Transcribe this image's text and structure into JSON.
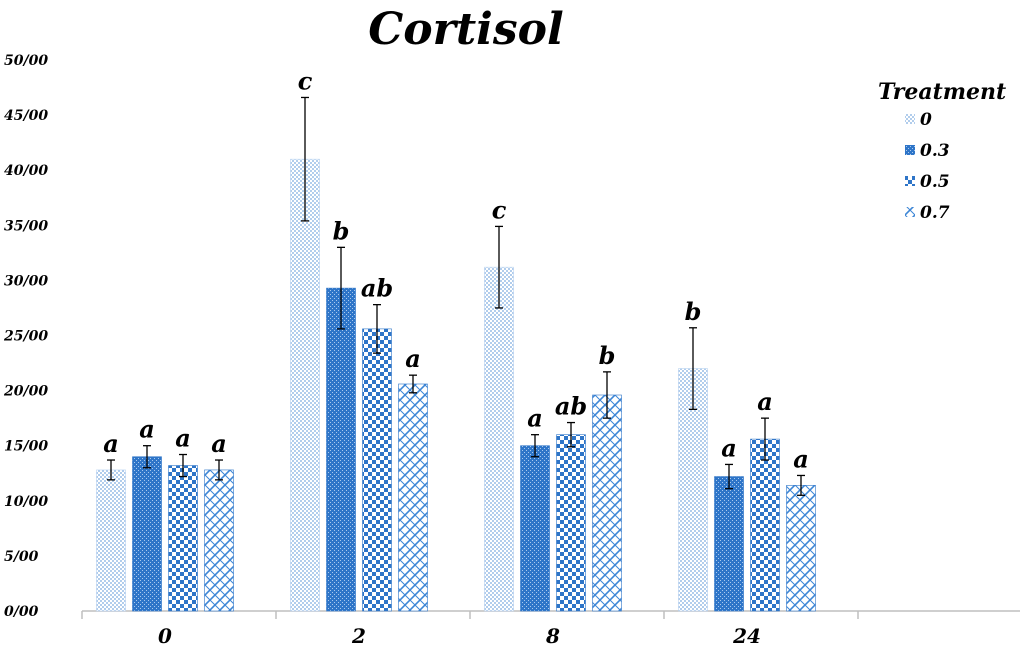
{
  "chart_data": {
    "type": "bar",
    "title": "Cortisol",
    "xlabel": "",
    "ylabel": "",
    "ylim": [
      0,
      50
    ],
    "y_ticks": [
      "0/00",
      "5/00",
      "10/00",
      "15/00",
      "20/00",
      "25/00",
      "30/00",
      "35/00",
      "40/00",
      "45/00",
      "50/00"
    ],
    "categories": [
      "0",
      "2",
      "8",
      "24"
    ],
    "legend_title": "Treatment",
    "legend_position": "top-right",
    "grid": false,
    "series": [
      {
        "name": "0",
        "pattern": "dots",
        "color": "#8fb8e6",
        "values": [
          12.8,
          41.0,
          31.2,
          22.0
        ],
        "errors": [
          0.9,
          5.6,
          3.7,
          3.7
        ],
        "letters": [
          "a",
          "c",
          "c",
          "b"
        ]
      },
      {
        "name": "0.3",
        "pattern": "dense",
        "color": "#2e75c8",
        "values": [
          14.0,
          29.3,
          15.0,
          12.2
        ],
        "errors": [
          1.0,
          3.7,
          1.0,
          1.1
        ],
        "letters": [
          "a",
          "b",
          "a",
          "a"
        ]
      },
      {
        "name": "0.5",
        "pattern": "checker",
        "color": "#2e75c8",
        "values": [
          13.2,
          25.6,
          16.0,
          15.6
        ],
        "errors": [
          1.0,
          2.2,
          1.1,
          1.9
        ],
        "letters": [
          "a",
          "ab",
          "ab",
          "a"
        ]
      },
      {
        "name": "0.7",
        "pattern": "zigzag",
        "color": "#3d86d6",
        "values": [
          12.8,
          20.6,
          19.6,
          11.4
        ],
        "errors": [
          0.9,
          0.8,
          2.1,
          0.9
        ],
        "letters": [
          "a",
          "a",
          "b",
          "a"
        ]
      }
    ]
  }
}
